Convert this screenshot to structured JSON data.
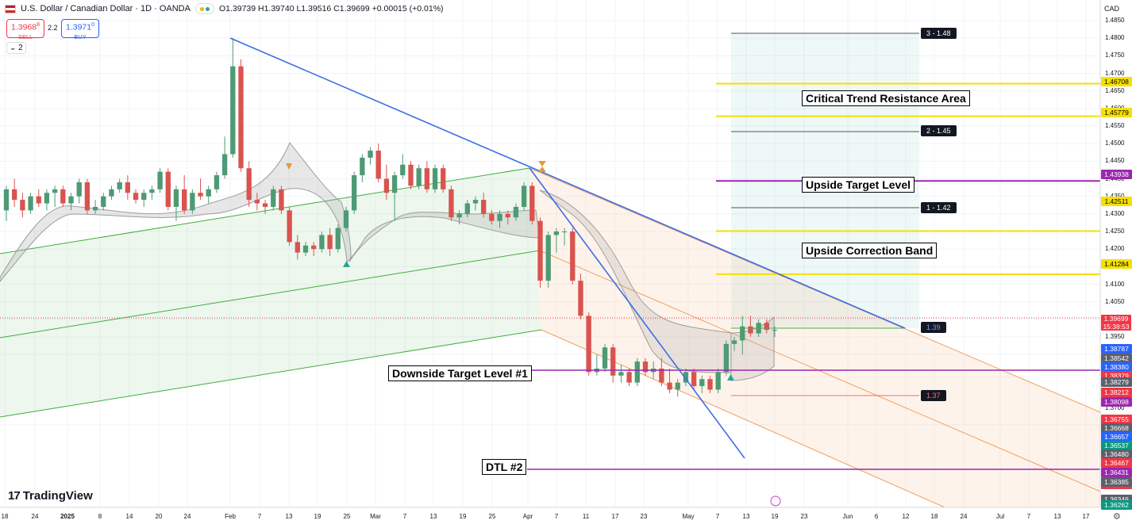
{
  "header": {
    "title": "U.S. Dollar / Canadian Dollar · 1D · OANDA",
    "ohlc": "O1.39739 H1.39740 L1.39516 C1.39699 +0.00015 (+0.01%)",
    "sell_price": "1.3968",
    "sell_sup": "8",
    "sell_label": "SELL",
    "spread": "2.2",
    "buy_price": "1.3971",
    "buy_sup": "0",
    "buy_label": "BUY",
    "indicator_count": "2"
  },
  "brand": "TradingView",
  "currency": "CAD",
  "colors": {
    "up": "#4e9a75",
    "down": "#d9534f",
    "trend_blue": "#3b6ee6",
    "channel_green": "#3fae3f",
    "channel_orange": "#f0a060",
    "resistance_yellow": "#f5e000",
    "purple": "#9c27b0"
  },
  "chart_data": {
    "type": "candlestick",
    "symbol": "USDCAD",
    "timeframe": "1D",
    "ylim": [
      1.36,
      1.4855
    ],
    "y_ticks": [
      1.485,
      1.48,
      1.475,
      1.47,
      1.465,
      1.46,
      1.455,
      1.45,
      1.445,
      1.44,
      1.435,
      1.43,
      1.425,
      1.42,
      1.415,
      1.41,
      1.405,
      1.4,
      1.395,
      1.39,
      1.37
    ],
    "x_ticks": [
      "18",
      "24",
      "2025",
      "8",
      "14",
      "20",
      "24",
      "Feb",
      "7",
      "13",
      "19",
      "25",
      "Mar",
      "7",
      "13",
      "19",
      "25",
      "Apr",
      "7",
      "11",
      "17",
      "23",
      "May",
      "7",
      "13",
      "19",
      "23",
      "Jun",
      "6",
      "12",
      "18",
      "24",
      "Jul",
      "7",
      "13",
      "17"
    ],
    "current_price": {
      "value": "1.39699",
      "countdown": "15:38:53"
    },
    "price_labels": [
      {
        "value": "1.46708",
        "kind": "yellow"
      },
      {
        "value": "1.45779",
        "kind": "yellow"
      },
      {
        "value": "1.43938",
        "kind": "purple"
      },
      {
        "value": "1.42511",
        "kind": "yellow"
      },
      {
        "value": "1.41284",
        "kind": "yellow"
      },
      {
        "value": "1.38787",
        "kind": "blue"
      },
      {
        "value": "1.38542",
        "kind": "gray"
      },
      {
        "value": "1.38380",
        "kind": "blue"
      },
      {
        "value": "1.38379",
        "kind": "red"
      },
      {
        "value": "1.38279",
        "kind": "gray"
      },
      {
        "value": "1.38212",
        "kind": "red"
      },
      {
        "value": "1.38098",
        "kind": "purple"
      },
      {
        "value": "1.36755",
        "kind": "red"
      },
      {
        "value": "1.36668",
        "kind": "gray"
      },
      {
        "value": "1.36657",
        "kind": "blue"
      },
      {
        "value": "1.36537",
        "kind": "green"
      },
      {
        "value": "1.36480",
        "kind": "gray"
      },
      {
        "value": "1.36467",
        "kind": "red"
      },
      {
        "value": "1.36431",
        "kind": "purple"
      },
      {
        "value": "1.36362",
        "kind": "red"
      },
      {
        "value": "1.36385",
        "kind": "gray"
      },
      {
        "value": "1.36346",
        "kind": "gray"
      },
      {
        "value": "1.36262",
        "kind": "green"
      }
    ],
    "targets": [
      {
        "label": "3 - 1.48",
        "value": 1.4815
      },
      {
        "label": "2 - 1.45",
        "value": 1.4518
      },
      {
        "label": "1 - 1.42",
        "value": 1.4223
      },
      {
        "label": "1.39",
        "value": 1.3937
      },
      {
        "label": "1.37",
        "value": 1.3696
      }
    ],
    "annotations": [
      {
        "text": "Critical Trend Resistance Area"
      },
      {
        "text": "Upside Target Level"
      },
      {
        "text": "Upside Correction Band"
      },
      {
        "text": "Downside Target Level #1"
      },
      {
        "text": "DTL #2"
      }
    ],
    "series": [
      {
        "name": "USDCAD",
        "ohlc": [
          [
            1.431,
            1.438,
            1.428,
            1.437
          ],
          [
            1.437,
            1.44,
            1.432,
            1.434
          ],
          [
            1.434,
            1.436,
            1.429,
            1.431
          ],
          [
            1.431,
            1.436,
            1.43,
            1.435
          ],
          [
            1.435,
            1.437,
            1.432,
            1.433
          ],
          [
            1.433,
            1.437,
            1.431,
            1.436
          ],
          [
            1.436,
            1.438,
            1.432,
            1.437
          ],
          [
            1.437,
            1.438,
            1.432,
            1.433
          ],
          [
            1.433,
            1.436,
            1.431,
            1.435
          ],
          [
            1.435,
            1.44,
            1.433,
            1.439
          ],
          [
            1.439,
            1.44,
            1.43,
            1.431
          ],
          [
            1.431,
            1.434,
            1.43,
            1.432
          ],
          [
            1.432,
            1.436,
            1.431,
            1.435
          ],
          [
            1.435,
            1.438,
            1.434,
            1.437
          ],
          [
            1.437,
            1.44,
            1.436,
            1.439
          ],
          [
            1.439,
            1.441,
            1.434,
            1.436
          ],
          [
            1.436,
            1.437,
            1.433,
            1.434
          ],
          [
            1.434,
            1.437,
            1.432,
            1.436
          ],
          [
            1.436,
            1.438,
            1.434,
            1.437
          ],
          [
            1.437,
            1.443,
            1.436,
            1.442
          ],
          [
            1.442,
            1.443,
            1.431,
            1.432
          ],
          [
            1.432,
            1.438,
            1.428,
            1.437
          ],
          [
            1.437,
            1.441,
            1.43,
            1.431
          ],
          [
            1.431,
            1.437,
            1.43,
            1.436
          ],
          [
            1.436,
            1.44,
            1.434,
            1.435
          ],
          [
            1.435,
            1.438,
            1.433,
            1.437
          ],
          [
            1.437,
            1.442,
            1.436,
            1.441
          ],
          [
            1.441,
            1.452,
            1.44,
            1.447
          ],
          [
            1.447,
            1.48,
            1.446,
            1.472
          ],
          [
            1.472,
            1.474,
            1.442,
            1.443
          ],
          [
            1.443,
            1.445,
            1.432,
            1.434
          ],
          [
            1.434,
            1.436,
            1.431,
            1.433
          ],
          [
            1.433,
            1.434,
            1.43,
            1.432
          ],
          [
            1.432,
            1.438,
            1.431,
            1.437
          ],
          [
            1.437,
            1.438,
            1.43,
            1.431
          ],
          [
            1.431,
            1.432,
            1.421,
            1.422
          ],
          [
            1.422,
            1.424,
            1.417,
            1.419
          ],
          [
            1.419,
            1.422,
            1.418,
            1.421
          ],
          [
            1.421,
            1.422,
            1.418,
            1.42
          ],
          [
            1.42,
            1.425,
            1.419,
            1.424
          ],
          [
            1.424,
            1.426,
            1.418,
            1.42
          ],
          [
            1.42,
            1.427,
            1.419,
            1.426
          ],
          [
            1.426,
            1.432,
            1.425,
            1.431
          ],
          [
            1.431,
            1.442,
            1.43,
            1.441
          ],
          [
            1.441,
            1.447,
            1.439,
            1.446
          ],
          [
            1.446,
            1.449,
            1.444,
            1.448
          ],
          [
            1.448,
            1.45,
            1.439,
            1.44
          ],
          [
            1.44,
            1.444,
            1.434,
            1.436
          ],
          [
            1.436,
            1.442,
            1.428,
            1.441
          ],
          [
            1.441,
            1.447,
            1.44,
            1.444
          ],
          [
            1.444,
            1.445,
            1.437,
            1.438
          ],
          [
            1.438,
            1.444,
            1.437,
            1.443
          ],
          [
            1.443,
            1.445,
            1.436,
            1.437
          ],
          [
            1.437,
            1.444,
            1.436,
            1.443
          ],
          [
            1.443,
            1.444,
            1.436,
            1.437
          ],
          [
            1.437,
            1.438,
            1.428,
            1.429
          ],
          [
            1.429,
            1.431,
            1.427,
            1.43
          ],
          [
            1.43,
            1.434,
            1.429,
            1.433
          ],
          [
            1.433,
            1.435,
            1.431,
            1.434
          ],
          [
            1.434,
            1.436,
            1.429,
            1.43
          ],
          [
            1.43,
            1.431,
            1.427,
            1.428
          ],
          [
            1.428,
            1.431,
            1.426,
            1.43
          ],
          [
            1.43,
            1.431,
            1.427,
            1.429
          ],
          [
            1.429,
            1.433,
            1.428,
            1.432
          ],
          [
            1.432,
            1.439,
            1.431,
            1.438
          ],
          [
            1.438,
            1.439,
            1.427,
            1.428
          ],
          [
            1.428,
            1.429,
            1.409,
            1.411
          ],
          [
            1.411,
            1.425,
            1.409,
            1.424
          ],
          [
            1.424,
            1.426,
            1.419,
            1.425
          ],
          [
            1.425,
            1.426,
            1.421,
            1.425
          ],
          [
            1.425,
            1.426,
            1.41,
            1.411
          ],
          [
            1.411,
            1.413,
            1.4,
            1.401
          ],
          [
            1.401,
            1.402,
            1.384,
            1.385
          ],
          [
            1.385,
            1.39,
            1.384,
            1.386
          ],
          [
            1.386,
            1.393,
            1.385,
            1.392
          ],
          [
            1.392,
            1.393,
            1.382,
            1.384
          ],
          [
            1.384,
            1.387,
            1.382,
            1.385
          ],
          [
            1.385,
            1.386,
            1.381,
            1.382
          ],
          [
            1.382,
            1.389,
            1.381,
            1.388
          ],
          [
            1.388,
            1.389,
            1.384,
            1.385
          ],
          [
            1.385,
            1.388,
            1.383,
            1.386
          ],
          [
            1.386,
            1.389,
            1.381,
            1.382
          ],
          [
            1.382,
            1.386,
            1.379,
            1.38
          ],
          [
            1.38,
            1.383,
            1.378,
            1.382
          ],
          [
            1.382,
            1.386,
            1.381,
            1.385
          ],
          [
            1.385,
            1.386,
            1.38,
            1.381
          ],
          [
            1.381,
            1.384,
            1.379,
            1.383
          ],
          [
            1.383,
            1.384,
            1.379,
            1.38
          ],
          [
            1.38,
            1.386,
            1.379,
            1.385
          ],
          [
            1.385,
            1.394,
            1.384,
            1.393
          ],
          [
            1.393,
            1.395,
            1.391,
            1.394
          ],
          [
            1.394,
            1.401,
            1.39,
            1.398
          ],
          [
            1.398,
            1.401,
            1.395,
            1.396
          ],
          [
            1.396,
            1.4,
            1.395,
            1.399
          ],
          [
            1.399,
            1.4,
            1.396,
            1.397
          ],
          [
            1.397,
            1.398,
            1.395,
            1.397
          ]
        ]
      }
    ],
    "overlays": [
      {
        "name": "descending trend line",
        "kind": "line",
        "points": [
          [
            1.48,
            "Feb"
          ],
          [
            1.3937,
            "Jun 12"
          ]
        ]
      },
      {
        "name": "steep trend line",
        "kind": "line"
      },
      {
        "name": "ascending green channel",
        "kind": "parallel-channel"
      },
      {
        "name": "descending orange channel",
        "kind": "parallel-channel"
      },
      {
        "name": "Upside Target Level",
        "value": 1.43938
      },
      {
        "name": "Downside Target Level #1",
        "value": 1.38098
      },
      {
        "name": "DTL #2",
        "value": 1.36431
      },
      {
        "name": "resistance levels",
        "values": [
          1.46708,
          1.45779,
          1.42511,
          1.41284
        ]
      }
    ]
  }
}
